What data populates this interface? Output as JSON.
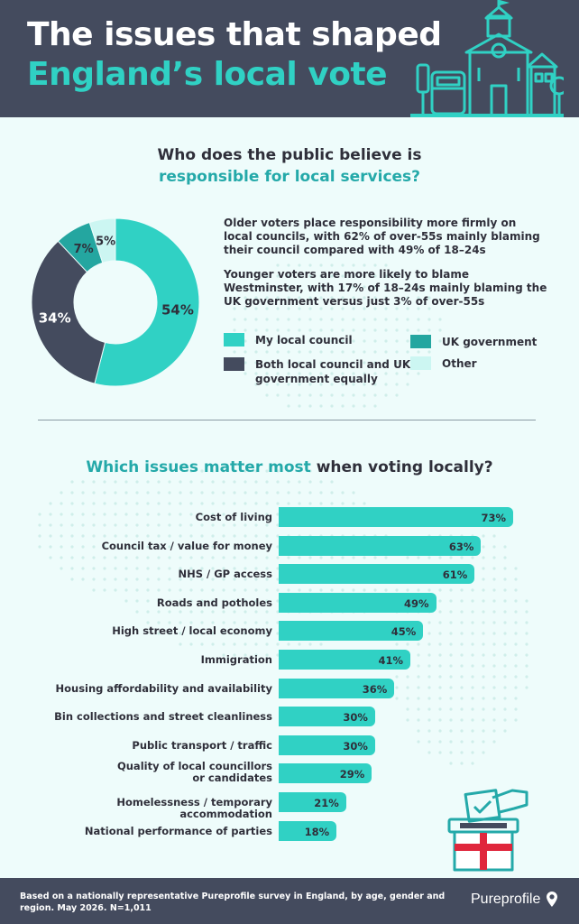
{
  "header": {
    "title_line1": "The issues that shaped",
    "title_line2": "England’s local vote"
  },
  "section1": {
    "question_line1": "Who does the public believe is",
    "question_line2": "responsible for local services?",
    "note1": "Older voters place responsibility more firmly on local councils, with 62% of over-55s mainly blaming their council compared with 49% of 18–24s",
    "note2": "Younger voters are more likely to blame Westminster, with 17% of 18–24s mainly blaming the UK government versus just 3% of over-55s"
  },
  "section2": {
    "question_teal": "Which issues matter most",
    "question_dark": " when voting locally?"
  },
  "chart_data": [
    {
      "type": "pie",
      "categories": [
        "My local council",
        "Both local council and UK government equally",
        "UK government",
        "Other"
      ],
      "values": [
        54,
        34,
        7,
        5
      ],
      "labels": [
        "54%",
        "34%",
        "7%",
        "5%"
      ],
      "colors": [
        "#30d1c4",
        "#444b5e",
        "#24a6a0",
        "#ccf6f2"
      ],
      "legend": "right"
    },
    {
      "type": "bar",
      "orientation": "horizontal",
      "categories": [
        "Cost of living",
        "Council tax / value for money",
        "NHS / GP access",
        "Roads and potholes",
        "High street / local economy",
        "Immigration",
        "Housing affordability and availability",
        "Bin collections and street cleanliness",
        "Public transport / traffic",
        "Quality of local councillors or candidates",
        "Homelessness / temporary accommodation",
        "National performance of parties"
      ],
      "values": [
        73,
        63,
        61,
        49,
        45,
        41,
        36,
        30,
        30,
        29,
        21,
        18
      ],
      "labels": [
        "73%",
        "63%",
        "61%",
        "49%",
        "45%",
        "41%",
        "36%",
        "30%",
        "30%",
        "29%",
        "21%",
        "18%"
      ],
      "color": "#30d1c4",
      "grid": false
    }
  ],
  "footer": {
    "text": "Based on a nationally representative Pureprofile survey in England, by age, gender and region. May 2026. N=1,011",
    "brand": "Pureprofile"
  }
}
